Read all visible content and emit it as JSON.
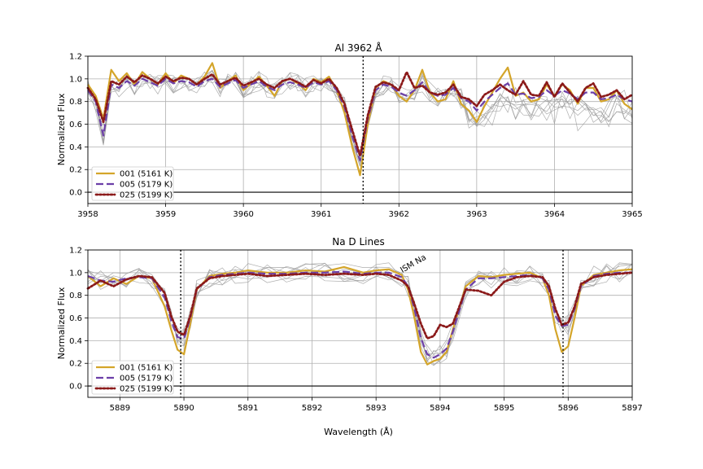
{
  "chart_data": [
    {
      "type": "line",
      "title": "Al 3962 Å",
      "xlabel": "",
      "ylabel": "Normalized Flux",
      "xlim": [
        3958,
        3965
      ],
      "ylim": [
        -0.1,
        1.2
      ],
      "xticks": [
        3958,
        3959,
        3960,
        3961,
        3962,
        3963,
        3964,
        3965
      ],
      "xtick_labels": [
        "3958",
        "3959",
        "3960",
        "3961",
        "3962",
        "3963",
        "3964",
        "3965"
      ],
      "yticks": [
        0.0,
        0.2,
        0.4,
        0.6,
        0.8,
        1.0,
        1.2
      ],
      "ytick_labels": [
        "0.0",
        "0.2",
        "0.4",
        "0.6",
        "0.8",
        "1.0",
        "1.2"
      ],
      "grid": true,
      "reference_lines": [
        3961.54
      ],
      "legend_position": "lower-left",
      "series": [
        {
          "name": "001 (5161 K)",
          "color": "#d4a52a",
          "style": "solid",
          "x": [
            3958.0,
            3958.1,
            3958.2,
            3958.3,
            3958.4,
            3958.5,
            3958.6,
            3958.7,
            3958.8,
            3958.9,
            3959.0,
            3959.1,
            3959.2,
            3959.3,
            3959.4,
            3959.5,
            3959.6,
            3959.7,
            3959.8,
            3959.9,
            3960.0,
            3960.1,
            3960.2,
            3960.3,
            3960.4,
            3960.5,
            3960.6,
            3960.7,
            3960.8,
            3960.9,
            3961.0,
            3961.1,
            3961.2,
            3961.3,
            3961.4,
            3961.5,
            3961.6,
            3961.7,
            3961.8,
            3961.9,
            3962.0,
            3962.1,
            3962.2,
            3962.3,
            3962.4,
            3962.5,
            3962.6,
            3962.7,
            3962.8,
            3962.9,
            3963.0,
            3963.1,
            3963.2,
            3963.3,
            3963.4,
            3963.5,
            3963.6,
            3963.7,
            3963.8,
            3963.9,
            3964.0,
            3964.1,
            3964.2,
            3964.3,
            3964.4,
            3964.5,
            3964.6,
            3964.7,
            3964.8,
            3964.9,
            3965.0
          ],
          "y": [
            0.95,
            0.85,
            0.65,
            1.08,
            0.98,
            1.05,
            0.95,
            1.06,
            1.0,
            0.95,
            1.05,
            0.96,
            1.03,
            1.0,
            0.95,
            1.02,
            1.14,
            0.92,
            0.98,
            1.03,
            0.9,
            0.96,
            1.02,
            0.94,
            0.85,
            0.98,
            1.0,
            0.96,
            0.9,
            1.0,
            0.97,
            1.02,
            0.9,
            0.7,
            0.4,
            0.15,
            0.6,
            0.92,
            0.98,
            0.95,
            0.85,
            0.8,
            0.9,
            1.08,
            0.88,
            0.8,
            0.82,
            0.98,
            0.78,
            0.72,
            0.62,
            0.76,
            0.88,
            1.0,
            1.1,
            0.85,
            0.88,
            0.8,
            0.82,
            0.95,
            0.85,
            0.95,
            0.9,
            0.78,
            0.92,
            0.92,
            0.8,
            0.82,
            0.9,
            0.78,
            0.73
          ]
        },
        {
          "name": "005 (5179 K)",
          "color": "#6c3fa8",
          "style": "dashed",
          "x": [
            3958.0,
            3958.1,
            3958.2,
            3958.3,
            3958.4,
            3958.5,
            3958.6,
            3958.7,
            3958.8,
            3958.9,
            3959.0,
            3959.1,
            3959.2,
            3959.3,
            3959.4,
            3959.5,
            3959.6,
            3959.7,
            3959.8,
            3959.9,
            3960.0,
            3960.1,
            3960.2,
            3960.3,
            3960.4,
            3960.5,
            3960.6,
            3960.7,
            3960.8,
            3960.9,
            3961.0,
            3961.1,
            3961.2,
            3961.3,
            3961.4,
            3961.5,
            3961.6,
            3961.7,
            3961.8,
            3961.9,
            3962.0,
            3962.1,
            3962.2,
            3962.3,
            3962.4,
            3962.5,
            3962.6,
            3962.7,
            3962.8,
            3962.9,
            3963.0,
            3963.1,
            3963.2,
            3963.3,
            3963.4,
            3963.5,
            3963.6,
            3963.7,
            3963.8,
            3963.9,
            3964.0,
            3964.1,
            3964.2,
            3964.3,
            3964.4,
            3964.5,
            3964.6,
            3964.7,
            3964.8,
            3964.9,
            3965.0
          ],
          "y": [
            0.9,
            0.8,
            0.5,
            0.95,
            0.92,
            0.98,
            0.94,
            1.0,
            0.97,
            0.94,
            1.0,
            0.96,
            0.98,
            0.97,
            0.93,
            0.98,
            1.0,
            0.93,
            0.96,
            0.99,
            0.92,
            0.95,
            0.98,
            0.93,
            0.9,
            0.95,
            0.97,
            0.95,
            0.92,
            0.97,
            0.95,
            0.98,
            0.9,
            0.75,
            0.5,
            0.28,
            0.65,
            0.9,
            0.95,
            0.93,
            0.88,
            0.85,
            0.9,
            0.97,
            0.88,
            0.85,
            0.86,
            0.92,
            0.83,
            0.8,
            0.72,
            0.8,
            0.86,
            0.92,
            0.96,
            0.86,
            0.87,
            0.83,
            0.84,
            0.9,
            0.85,
            0.9,
            0.87,
            0.82,
            0.88,
            0.88,
            0.82,
            0.83,
            0.86,
            0.82,
            0.8
          ]
        },
        {
          "name": "025 (5199 K)",
          "color": "#8b1a1a",
          "style": "dotted",
          "x": [
            3958.0,
            3958.1,
            3958.2,
            3958.3,
            3958.4,
            3958.5,
            3958.6,
            3958.7,
            3958.8,
            3958.9,
            3959.0,
            3959.1,
            3959.2,
            3959.3,
            3959.4,
            3959.5,
            3959.6,
            3959.7,
            3959.8,
            3959.9,
            3960.0,
            3960.1,
            3960.2,
            3960.3,
            3960.4,
            3960.5,
            3960.6,
            3960.7,
            3960.8,
            3960.9,
            3961.0,
            3961.1,
            3961.2,
            3961.3,
            3961.4,
            3961.5,
            3961.6,
            3961.7,
            3961.8,
            3961.9,
            3962.0,
            3962.1,
            3962.2,
            3962.3,
            3962.4,
            3962.5,
            3962.6,
            3962.7,
            3962.8,
            3962.9,
            3963.0,
            3963.1,
            3963.2,
            3963.3,
            3963.4,
            3963.5,
            3963.6,
            3963.7,
            3963.8,
            3963.9,
            3964.0,
            3964.1,
            3964.2,
            3964.3,
            3964.4,
            3964.5,
            3964.6,
            3964.7,
            3964.8,
            3964.9,
            3965.0
          ],
          "y": [
            0.92,
            0.82,
            0.62,
            0.98,
            0.95,
            1.02,
            0.97,
            1.03,
            1.0,
            0.96,
            1.02,
            0.98,
            1.01,
            1.0,
            0.95,
            1.0,
            1.04,
            0.95,
            0.98,
            1.01,
            0.94,
            0.97,
            1.0,
            0.95,
            0.92,
            0.98,
            1.0,
            0.97,
            0.93,
            0.99,
            0.96,
            1.0,
            0.92,
            0.78,
            0.55,
            0.32,
            0.68,
            0.93,
            0.97,
            0.95,
            0.9,
            1.06,
            0.92,
            0.94,
            0.88,
            0.86,
            0.88,
            0.95,
            0.84,
            0.82,
            0.76,
            0.86,
            0.9,
            0.95,
            0.9,
            0.86,
            0.98,
            0.86,
            0.85,
            0.97,
            0.84,
            0.96,
            0.88,
            0.8,
            0.92,
            0.96,
            0.84,
            0.86,
            0.9,
            0.82,
            0.86
          ]
        }
      ]
    },
    {
      "type": "line",
      "title": "Na D Lines",
      "xlabel": "Wavelength (Å)",
      "ylabel": "Normalized Flux",
      "xlim": [
        5888.5,
        5897
      ],
      "ylim": [
        -0.1,
        1.2
      ],
      "xticks": [
        5889,
        5890,
        5891,
        5892,
        5893,
        5894,
        5895,
        5896,
        5897
      ],
      "xtick_labels": [
        "5889",
        "5890",
        "5891",
        "5892",
        "5893",
        "5894",
        "5895",
        "5896",
        "5897"
      ],
      "yticks": [
        0.0,
        0.2,
        0.4,
        0.6,
        0.8,
        1.0,
        1.2
      ],
      "ytick_labels": [
        "0.0",
        "0.2",
        "0.4",
        "0.6",
        "0.8",
        "1.0",
        "1.2"
      ],
      "grid": true,
      "reference_lines": [
        5889.95,
        5895.92
      ],
      "annotation": {
        "text": "ISM Na",
        "x": 5893.6,
        "y": 1.06
      },
      "legend_position": "lower-left",
      "series": [
        {
          "name": "001 (5161 K)",
          "color": "#d4a52a",
          "style": "solid",
          "x": [
            5888.5,
            5888.7,
            5888.9,
            5889.1,
            5889.3,
            5889.5,
            5889.7,
            5889.8,
            5889.9,
            5890.0,
            5890.1,
            5890.2,
            5890.4,
            5890.6,
            5890.8,
            5891.0,
            5891.3,
            5891.6,
            5891.9,
            5892.2,
            5892.5,
            5892.8,
            5893.0,
            5893.2,
            5893.4,
            5893.5,
            5893.6,
            5893.7,
            5893.8,
            5893.9,
            5894.0,
            5894.1,
            5894.2,
            5894.4,
            5894.6,
            5894.8,
            5895.0,
            5895.2,
            5895.4,
            5895.6,
            5895.7,
            5895.8,
            5895.9,
            5896.0,
            5896.1,
            5896.2,
            5896.4,
            5896.6,
            5896.8,
            5897.0
          ],
          "y": [
            0.97,
            0.88,
            0.95,
            0.9,
            0.97,
            0.95,
            0.7,
            0.5,
            0.32,
            0.28,
            0.55,
            0.85,
            0.97,
            0.99,
            1.0,
            1.02,
            1.0,
            1.0,
            1.02,
            1.01,
            1.05,
            1.0,
            1.02,
            1.03,
            0.98,
            0.85,
            0.6,
            0.3,
            0.19,
            0.22,
            0.24,
            0.3,
            0.5,
            0.88,
            0.97,
            0.96,
            0.98,
            0.99,
            1.0,
            0.95,
            0.8,
            0.5,
            0.3,
            0.35,
            0.6,
            0.88,
            0.98,
            1.0,
            1.02,
            1.03
          ]
        },
        {
          "name": "005 (5179 K)",
          "color": "#6c3fa8",
          "style": "dashed",
          "x": [
            5888.5,
            5888.7,
            5888.9,
            5889.1,
            5889.3,
            5889.5,
            5889.7,
            5889.8,
            5889.9,
            5890.0,
            5890.1,
            5890.2,
            5890.4,
            5890.6,
            5890.8,
            5891.0,
            5891.3,
            5891.6,
            5891.9,
            5892.2,
            5892.5,
            5892.8,
            5893.0,
            5893.2,
            5893.4,
            5893.5,
            5893.6,
            5893.7,
            5893.8,
            5893.9,
            5894.0,
            5894.1,
            5894.2,
            5894.4,
            5894.6,
            5894.8,
            5895.0,
            5895.2,
            5895.4,
            5895.6,
            5895.7,
            5895.8,
            5895.9,
            5896.0,
            5896.1,
            5896.2,
            5896.4,
            5896.6,
            5896.8,
            5897.0
          ],
          "y": [
            0.97,
            0.93,
            0.92,
            0.95,
            0.96,
            0.95,
            0.78,
            0.58,
            0.43,
            0.42,
            0.6,
            0.85,
            0.96,
            0.98,
            0.99,
            1.0,
            0.99,
            0.99,
            1.0,
            1.0,
            1.01,
            0.99,
            1.0,
            1.0,
            0.96,
            0.88,
            0.68,
            0.42,
            0.28,
            0.25,
            0.28,
            0.33,
            0.48,
            0.85,
            0.95,
            0.95,
            0.96,
            0.97,
            0.98,
            0.95,
            0.85,
            0.62,
            0.53,
            0.54,
            0.68,
            0.88,
            0.97,
            0.99,
            1.0,
            1.0
          ]
        },
        {
          "name": "025 (5199 K)",
          "color": "#8b1a1a",
          "style": "dotted",
          "x": [
            5888.5,
            5888.7,
            5888.9,
            5889.1,
            5889.3,
            5889.5,
            5889.7,
            5889.8,
            5889.9,
            5890.0,
            5890.1,
            5890.2,
            5890.4,
            5890.6,
            5890.8,
            5891.0,
            5891.3,
            5891.6,
            5891.9,
            5892.2,
            5892.5,
            5892.8,
            5893.0,
            5893.2,
            5893.4,
            5893.5,
            5893.6,
            5893.7,
            5893.8,
            5893.9,
            5894.0,
            5894.1,
            5894.2,
            5894.4,
            5894.6,
            5894.8,
            5895.0,
            5895.2,
            5895.4,
            5895.6,
            5895.7,
            5895.8,
            5895.9,
            5896.0,
            5896.1,
            5896.2,
            5896.4,
            5896.6,
            5896.8,
            5897.0
          ],
          "y": [
            0.86,
            0.93,
            0.88,
            0.94,
            0.97,
            0.96,
            0.82,
            0.62,
            0.48,
            0.45,
            0.62,
            0.86,
            0.95,
            0.97,
            0.98,
            0.99,
            0.97,
            0.98,
            0.99,
            0.98,
            0.99,
            0.98,
            0.99,
            0.98,
            0.93,
            0.88,
            0.72,
            0.55,
            0.42,
            0.44,
            0.54,
            0.52,
            0.55,
            0.85,
            0.84,
            0.8,
            0.92,
            0.96,
            0.97,
            0.96,
            0.88,
            0.68,
            0.54,
            0.56,
            0.7,
            0.9,
            0.96,
            0.98,
            0.99,
            1.0
          ]
        }
      ]
    }
  ]
}
